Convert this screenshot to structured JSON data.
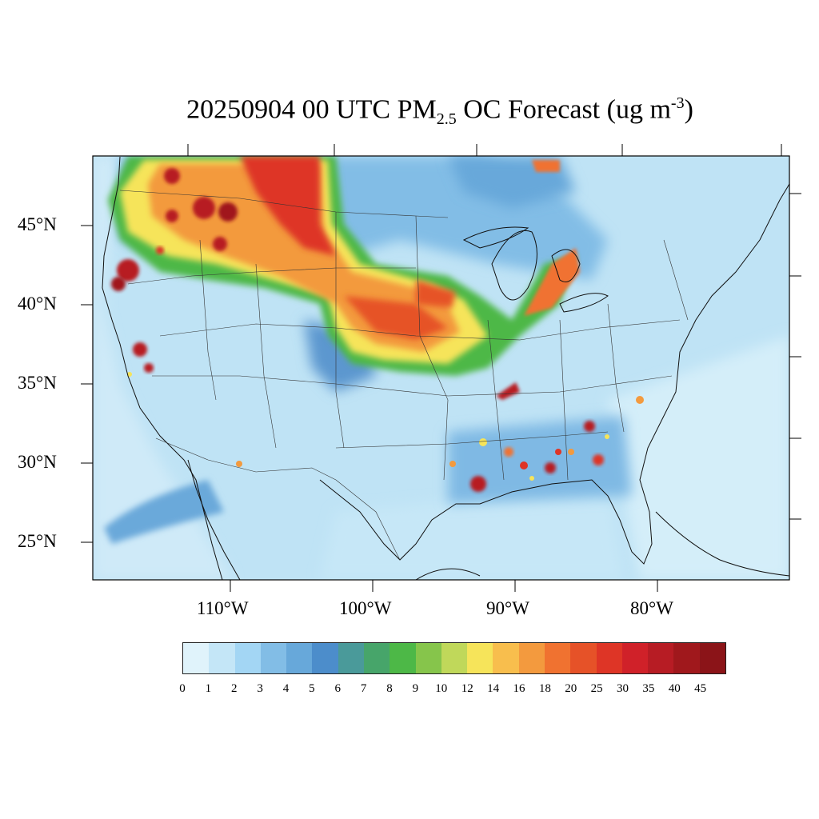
{
  "title": {
    "prefix": "20250904 00 UTC PM",
    "sub": "2.5",
    "middle": " OC Forecast (ug m",
    "sup": "-3",
    "suffix": ")"
  },
  "axes": {
    "lat_labels": [
      "45°N",
      "40°N",
      "35°N",
      "30°N",
      "25°N"
    ],
    "lon_labels": [
      "110°W",
      "100°W",
      "90°W",
      "80°W"
    ]
  },
  "colorbar": {
    "labels": [
      "0",
      "1",
      "2",
      "3",
      "4",
      "5",
      "6",
      "7",
      "8",
      "9",
      "10",
      "12",
      "14",
      "16",
      "18",
      "20",
      "25",
      "30",
      "35",
      "40",
      "45"
    ],
    "colors": [
      "#e0f3fb",
      "#c4e6f7",
      "#a3d6f4",
      "#82bde6",
      "#67a8da",
      "#4c8dcb",
      "#4a9a9a",
      "#47a56a",
      "#4db847",
      "#86c54b",
      "#c0d85a",
      "#f6e45a",
      "#f8be4d",
      "#f39a3e",
      "#f07230",
      "#e65228",
      "#de3526",
      "#d02129",
      "#b71c24",
      "#a0181c",
      "#8b1418"
    ]
  },
  "map": {
    "background_color": "#bfe3f5",
    "region": "Continental United States"
  }
}
